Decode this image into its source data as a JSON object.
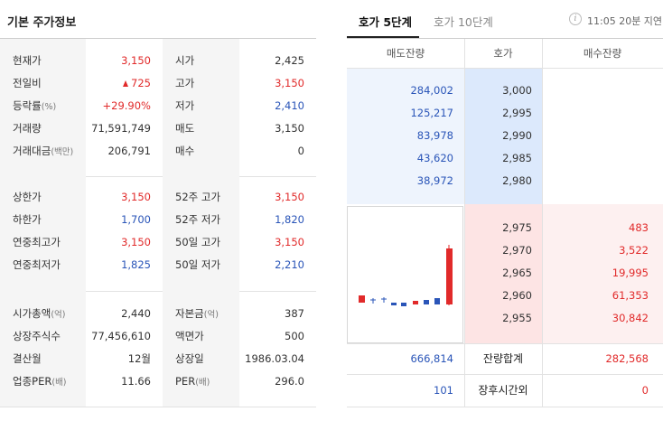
{
  "basic": {
    "title": "기본 주가정보",
    "section1": [
      {
        "l1": "현재가",
        "u1": "",
        "v1": "3,150",
        "c1": "red",
        "arrow1": false,
        "l2": "시가",
        "u2": "",
        "v2": "2,425",
        "c2": "dark"
      },
      {
        "l1": "전일비",
        "u1": "",
        "v1": "725",
        "c1": "red",
        "arrow1": true,
        "l2": "고가",
        "u2": "",
        "v2": "3,150",
        "c2": "red"
      },
      {
        "l1": "등락률",
        "u1": "(%)",
        "v1": "+29.90%",
        "c1": "red",
        "arrow1": false,
        "l2": "저가",
        "u2": "",
        "v2": "2,410",
        "c2": "blue"
      },
      {
        "l1": "거래량",
        "u1": "",
        "v1": "71,591,749",
        "c1": "dark",
        "arrow1": false,
        "l2": "매도",
        "u2": "",
        "v2": "3,150",
        "c2": "dark"
      },
      {
        "l1": "거래대금",
        "u1": "(백만)",
        "v1": "206,791",
        "c1": "dark",
        "arrow1": false,
        "l2": "매수",
        "u2": "",
        "v2": "0",
        "c2": "dark"
      }
    ],
    "section2": [
      {
        "l1": "상한가",
        "u1": "",
        "v1": "3,150",
        "c1": "red",
        "arrow1": false,
        "l2": "52주 고가",
        "u2": "",
        "v2": "3,150",
        "c2": "red"
      },
      {
        "l1": "하한가",
        "u1": "",
        "v1": "1,700",
        "c1": "blue",
        "arrow1": false,
        "l2": "52주 저가",
        "u2": "",
        "v2": "1,820",
        "c2": "blue"
      },
      {
        "l1": "연중최고가",
        "u1": "",
        "v1": "3,150",
        "c1": "red",
        "arrow1": false,
        "l2": "50일 고가",
        "u2": "",
        "v2": "3,150",
        "c2": "red"
      },
      {
        "l1": "연중최저가",
        "u1": "",
        "v1": "1,825",
        "c1": "blue",
        "arrow1": false,
        "l2": "50일 저가",
        "u2": "",
        "v2": "2,210",
        "c2": "blue"
      }
    ],
    "section3": [
      {
        "l1": "시가총액",
        "u1": "(억)",
        "v1": "2,440",
        "c1": "dark",
        "arrow1": false,
        "l2": "자본금",
        "u2": "(억)",
        "v2": "387",
        "c2": "dark"
      },
      {
        "l1": "상장주식수",
        "u1": "",
        "v1": "77,456,610",
        "c1": "dark",
        "arrow1": false,
        "l2": "액면가",
        "u2": "",
        "v2": "500",
        "c2": "dark"
      },
      {
        "l1": "결산월",
        "u1": "",
        "v1": "12월",
        "c1": "dark",
        "arrow1": false,
        "l2": "상장일",
        "u2": "",
        "v2": "1986.03.04",
        "c2": "dark"
      },
      {
        "l1": "업종PER",
        "u1": "(배)",
        "v1": "11.66",
        "c1": "dark",
        "arrow1": false,
        "l2": "PER",
        "u2": "(배)",
        "v2": "296.0",
        "c2": "dark"
      }
    ]
  },
  "orderbook": {
    "tabs": [
      "호가 5단계",
      "호가 10단계"
    ],
    "delay_text": "11:05 20분 지연",
    "info_icon_glyph": "i",
    "headers": [
      "매도잔량",
      "호가",
      "매수잔량"
    ],
    "asks": [
      {
        "qty": "284,002",
        "price": "3,000"
      },
      {
        "qty": "125,217",
        "price": "2,995"
      },
      {
        "qty": "83,978",
        "price": "2,990"
      },
      {
        "qty": "43,620",
        "price": "2,985"
      },
      {
        "qty": "38,972",
        "price": "2,980"
      }
    ],
    "bids": [
      {
        "price": "2,975",
        "qty": "483"
      },
      {
        "price": "2,970",
        "qty": "3,522"
      },
      {
        "price": "2,965",
        "qty": "19,995"
      },
      {
        "price": "2,960",
        "qty": "61,353"
      },
      {
        "price": "2,955",
        "qty": "30,842"
      }
    ],
    "total_label": "잔량합계",
    "total_ask": "666,814",
    "total_bid": "282,568",
    "after_label": "장후시간외",
    "after_ask": "101",
    "after_bid": "0"
  },
  "colors": {
    "up": "#e12a2a",
    "down": "#2a55b8",
    "ask_bg": "#dce9fc",
    "bid_bg": "#fde4e4"
  }
}
